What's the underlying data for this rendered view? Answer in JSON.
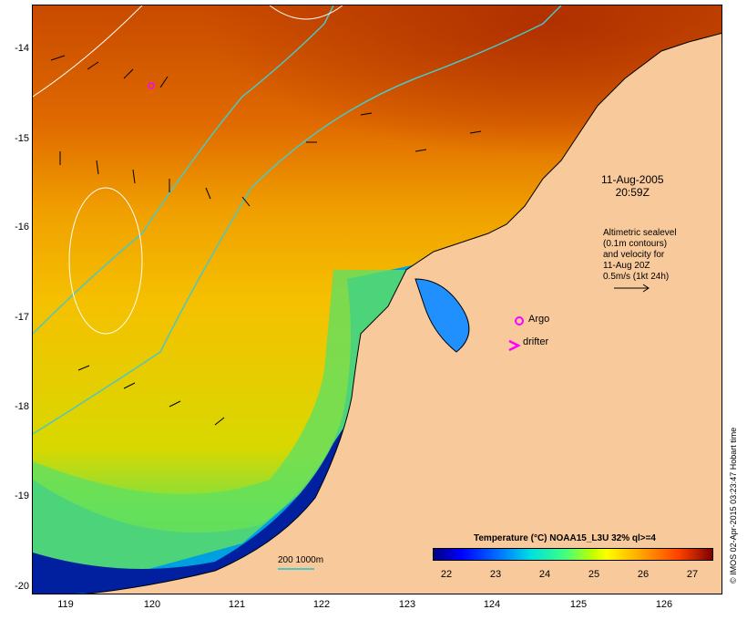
{
  "map": {
    "lat_ticks": [
      "-14",
      "-15",
      "-16",
      "-17",
      "-18",
      "-19",
      "-20"
    ],
    "lon_ticks": [
      "119",
      "120",
      "121",
      "122",
      "123",
      "124",
      "125",
      "126"
    ],
    "datetime": {
      "date": "11-Aug-2005",
      "time": "20:59Z"
    },
    "legend_lines": [
      "Altimetric sealevel",
      "(0.1m contours)",
      "and velocity for",
      "11-Aug 20Z",
      "0.5m/s (1kt 24h)"
    ],
    "argo_label": "Argo",
    "drifter_label": "drifter",
    "iso_label": "200 1000m",
    "credit": "© IMOS 02-Apr-2015 03:23:47 Hobart time",
    "colorbar": {
      "title": "Temperature (°C) NOAA15_L3U 32% ql>=4",
      "ticks": [
        "22",
        "23",
        "24",
        "25",
        "26",
        "27"
      ]
    },
    "colors": {
      "land": "#f7c99b",
      "warm": "#c84a00",
      "mid": "#f0a000",
      "cool": "#c0e020",
      "cold": "#0020a0",
      "isobath": "#4cc7c4",
      "argo": "#ff00ff"
    }
  }
}
